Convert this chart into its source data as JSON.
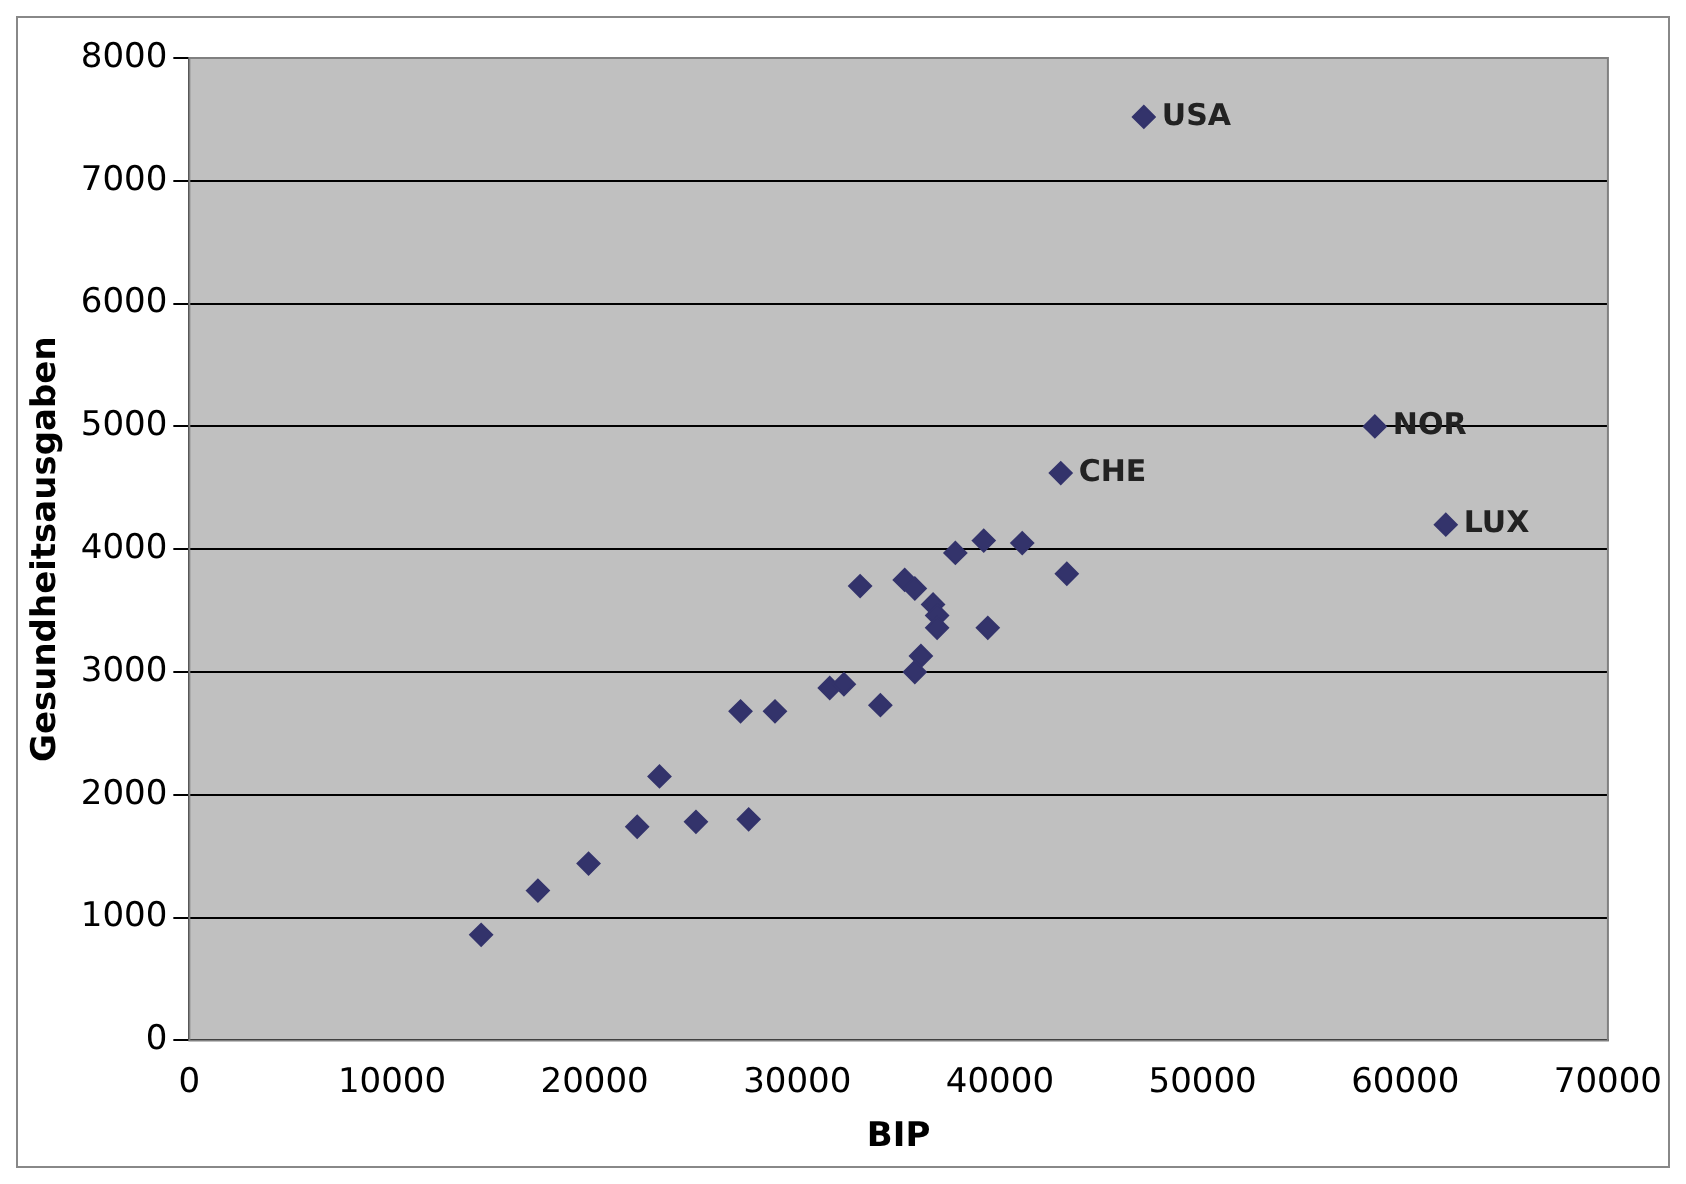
{
  "chart_data": {
    "type": "scatter",
    "xlabel": "BIP",
    "ylabel": "Gesundheitsausgaben",
    "x": [
      47100,
      58500,
      62000,
      43000,
      39200,
      41100,
      37800,
      43300,
      33100,
      35300,
      35800,
      36700,
      36900,
      36900,
      39400,
      36100,
      35800,
      31600,
      32300,
      34100,
      27200,
      28900,
      23200,
      22100,
      25000,
      27600,
      19700,
      17200,
      14400
    ],
    "series": [
      {
        "color": "#33336b",
        "values": [
          7520,
          5000,
          4200,
          4620,
          4070,
          4050,
          3970,
          3800,
          3700,
          3750,
          3680,
          3550,
          3460,
          3360,
          3360,
          3130,
          3000,
          2870,
          2900,
          2730,
          2680,
          2680,
          2150,
          1740,
          1780,
          1800,
          1440,
          1220,
          860
        ]
      }
    ],
    "xlim": [
      0,
      70000
    ],
    "xticks": [
      0,
      10000,
      20000,
      30000,
      40000,
      50000,
      60000,
      70000
    ],
    "ylim": [
      0,
      8000
    ],
    "yticks": [
      0,
      1000,
      2000,
      3000,
      4000,
      5000,
      6000,
      7000,
      8000
    ],
    "grid": "y",
    "marker": "diamond",
    "legend": false,
    "annotations": [
      {
        "text": "USA",
        "x": 47100,
        "y": 7520
      },
      {
        "text": "NOR",
        "x": 58500,
        "y": 5000
      },
      {
        "text": "LUX",
        "x": 62000,
        "y": 4200
      },
      {
        "text": "CHE",
        "x": 43000,
        "y": 4620
      }
    ]
  }
}
